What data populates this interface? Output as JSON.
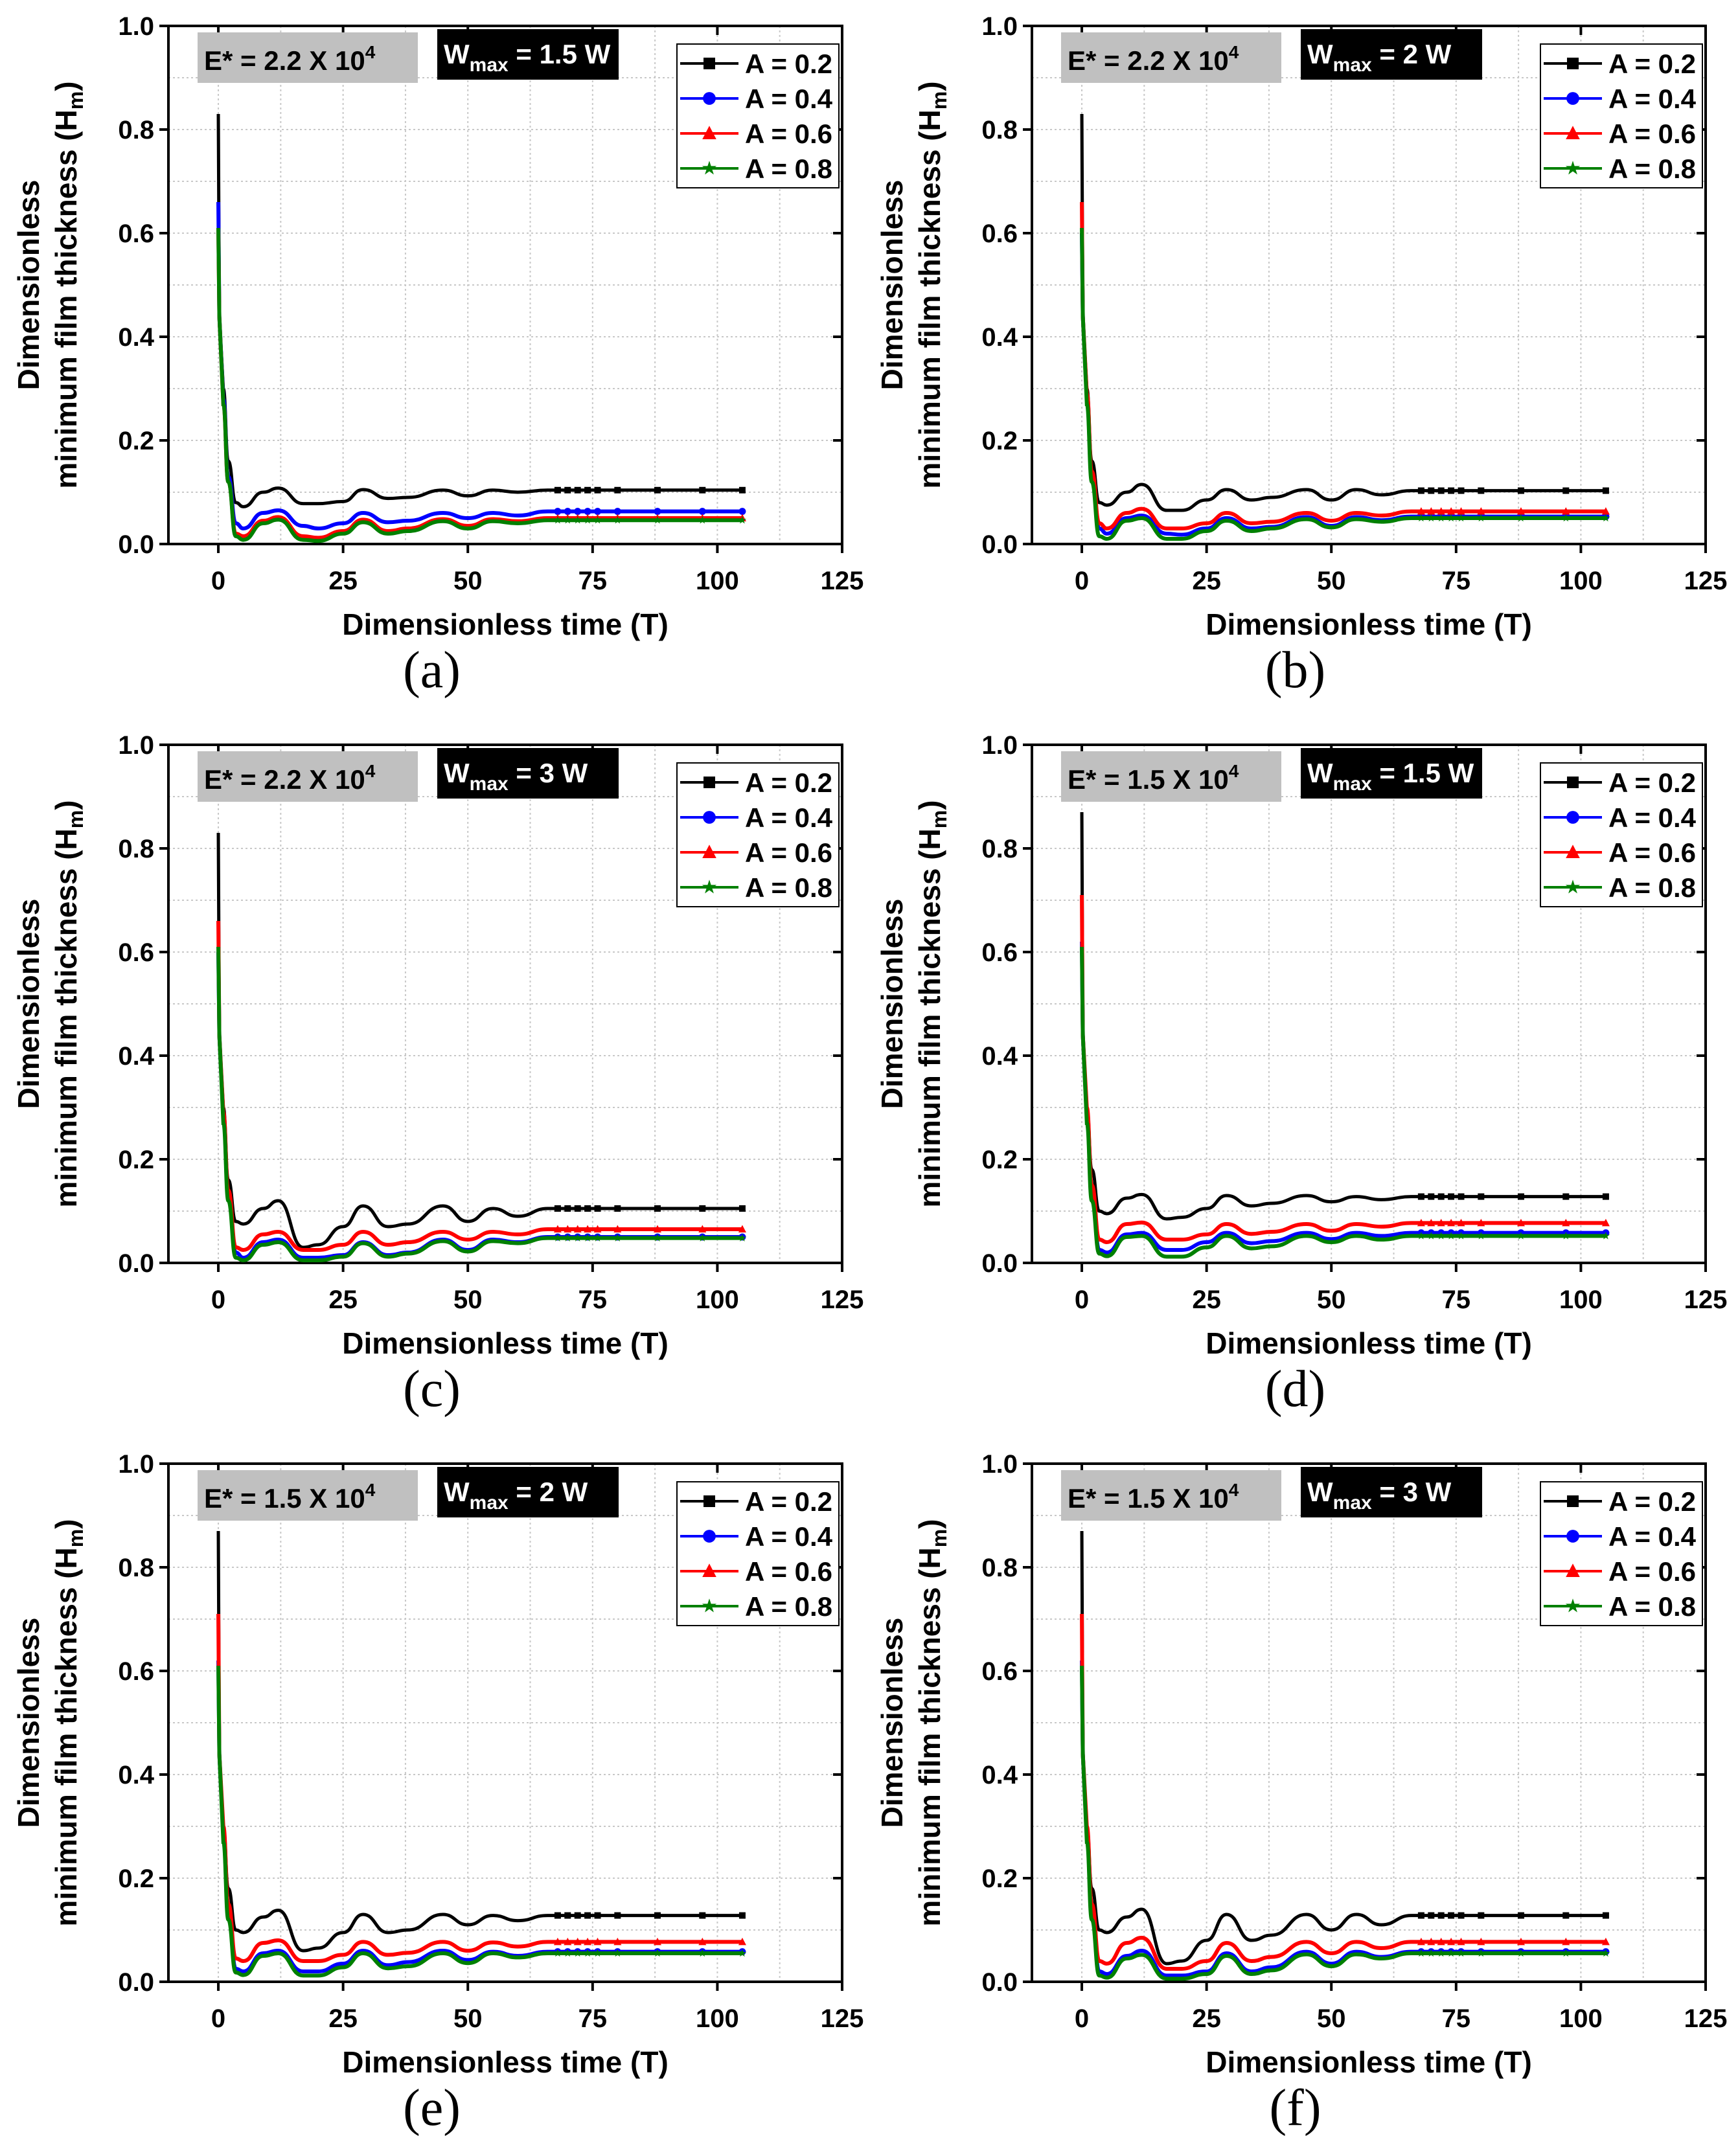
{
  "chart_data": [
    {
      "id": "a",
      "panel_label": "(a)",
      "type": "line",
      "e_label": "E* = 2.2 X 10",
      "e_exp": "4",
      "w_main": "W",
      "w_sub": "max",
      "w_rest": " = 1.5 W",
      "xlabel": "Dimensionless time (T)",
      "ylabel_line1": "Dimensionless",
      "ylabel_line2": "minimum film thickness (H",
      "ylabel_sub": "m",
      "ylabel_end": ")",
      "xlim": [
        -10,
        125
      ],
      "ylim": [
        0,
        1
      ],
      "xticks": [
        "0",
        "25",
        "50",
        "75",
        "100",
        "125"
      ],
      "yticks": [
        "0.0",
        "0.2",
        "0.4",
        "0.6",
        "0.8",
        "1.0"
      ],
      "grid": true,
      "legend": "top-right",
      "x": [
        0,
        0.2,
        1,
        2,
        3.5,
        5,
        9,
        12,
        17,
        20,
        25,
        29,
        34,
        38,
        45,
        50,
        55,
        60,
        66,
        105
      ],
      "series": [
        {
          "name": "A = 0.2",
          "color": "#000000",
          "marker": "square",
          "values": [
            0.83,
            0.44,
            0.3,
            0.16,
            0.08,
            0.072,
            0.1,
            0.108,
            0.078,
            0.078,
            0.082,
            0.105,
            0.088,
            0.09,
            0.104,
            0.093,
            0.104,
            0.1,
            0.104,
            0.104
          ]
        },
        {
          "name": "A = 0.4",
          "color": "#0000ff",
          "marker": "circle",
          "values": [
            0.66,
            0.44,
            0.28,
            0.13,
            0.04,
            0.03,
            0.06,
            0.065,
            0.035,
            0.03,
            0.04,
            0.06,
            0.042,
            0.045,
            0.06,
            0.05,
            0.06,
            0.055,
            0.063,
            0.063
          ]
        },
        {
          "name": "A = 0.6",
          "color": "#ff0000",
          "marker": "triangle",
          "values": [
            0.61,
            0.44,
            0.27,
            0.12,
            0.02,
            0.015,
            0.045,
            0.052,
            0.015,
            0.012,
            0.025,
            0.047,
            0.025,
            0.03,
            0.048,
            0.035,
            0.048,
            0.044,
            0.05,
            0.05
          ]
        },
        {
          "name": "A = 0.8",
          "color": "#008000",
          "marker": "star",
          "values": [
            0.61,
            0.44,
            0.27,
            0.12,
            0.015,
            0.008,
            0.04,
            0.047,
            0.008,
            0.006,
            0.02,
            0.042,
            0.02,
            0.025,
            0.044,
            0.03,
            0.044,
            0.04,
            0.046,
            0.046
          ]
        }
      ]
    },
    {
      "id": "b",
      "panel_label": "(b)",
      "type": "line",
      "e_label": "E* = 2.2 X 10",
      "e_exp": "4",
      "w_main": "W",
      "w_sub": "max",
      "w_rest": " = 2 W",
      "xlabel": "Dimensionless time (T)",
      "ylabel_line1": "Dimensionless",
      "ylabel_line2": "minimum film thickness (H",
      "ylabel_sub": "m",
      "ylabel_end": ")",
      "xlim": [
        -10,
        125
      ],
      "ylim": [
        0,
        1
      ],
      "xticks": [
        "0",
        "25",
        "50",
        "75",
        "100",
        "125"
      ],
      "yticks": [
        "0.0",
        "0.2",
        "0.4",
        "0.6",
        "0.8",
        "1.0"
      ],
      "grid": true,
      "legend": "top-right",
      "x": [
        0,
        0.2,
        1,
        2,
        3.5,
        5,
        9,
        12,
        17,
        20,
        25,
        29,
        34,
        38,
        45,
        50,
        55,
        60,
        66,
        105
      ],
      "series": [
        {
          "name": "A = 0.2",
          "color": "#000000",
          "marker": "square",
          "values": [
            0.83,
            0.44,
            0.3,
            0.16,
            0.08,
            0.075,
            0.1,
            0.115,
            0.065,
            0.065,
            0.085,
            0.105,
            0.085,
            0.09,
            0.105,
            0.085,
            0.105,
            0.095,
            0.103,
            0.103
          ]
        },
        {
          "name": "A = 0.4",
          "color": "#0000ff",
          "marker": "circle",
          "values": [
            0.6,
            0.44,
            0.28,
            0.13,
            0.03,
            0.02,
            0.05,
            0.055,
            0.02,
            0.018,
            0.03,
            0.05,
            0.03,
            0.033,
            0.052,
            0.035,
            0.052,
            0.046,
            0.053,
            0.053
          ]
        },
        {
          "name": "A = 0.6",
          "color": "#ff0000",
          "marker": "triangle",
          "values": [
            0.66,
            0.44,
            0.29,
            0.14,
            0.04,
            0.03,
            0.06,
            0.068,
            0.03,
            0.03,
            0.04,
            0.06,
            0.04,
            0.043,
            0.06,
            0.045,
            0.06,
            0.055,
            0.063,
            0.063
          ]
        },
        {
          "name": "A = 0.8",
          "color": "#008000",
          "marker": "star",
          "values": [
            0.61,
            0.44,
            0.27,
            0.12,
            0.015,
            0.01,
            0.045,
            0.05,
            0.01,
            0.01,
            0.025,
            0.045,
            0.025,
            0.03,
            0.048,
            0.032,
            0.048,
            0.043,
            0.05,
            0.05
          ]
        }
      ]
    },
    {
      "id": "c",
      "panel_label": "(c)",
      "type": "line",
      "e_label": "E* = 2.2 X 10",
      "e_exp": "4",
      "w_main": "W",
      "w_sub": "max",
      "w_rest": " = 3 W",
      "xlabel": "Dimensionless time (T)",
      "ylabel_line1": "Dimensionless",
      "ylabel_line2": "minimum film thickness (H",
      "ylabel_sub": "m",
      "ylabel_end": ")",
      "xlim": [
        -10,
        125
      ],
      "ylim": [
        0,
        1
      ],
      "xticks": [
        "0",
        "25",
        "50",
        "75",
        "100",
        "125"
      ],
      "yticks": [
        "0.0",
        "0.2",
        "0.4",
        "0.6",
        "0.8",
        "1.0"
      ],
      "grid": true,
      "legend": "top-right",
      "x": [
        0,
        0.2,
        1,
        2,
        3.5,
        5,
        9,
        12,
        17,
        20,
        25,
        29,
        34,
        38,
        45,
        50,
        55,
        60,
        66,
        105
      ],
      "series": [
        {
          "name": "A = 0.2",
          "color": "#000000",
          "marker": "square",
          "values": [
            0.83,
            0.44,
            0.3,
            0.16,
            0.08,
            0.075,
            0.105,
            0.12,
            0.03,
            0.035,
            0.07,
            0.11,
            0.07,
            0.075,
            0.11,
            0.08,
            0.105,
            0.09,
            0.105,
            0.105
          ]
        },
        {
          "name": "A = 0.4",
          "color": "#0000ff",
          "marker": "circle",
          "values": [
            0.6,
            0.44,
            0.28,
            0.13,
            0.02,
            0.01,
            0.04,
            0.045,
            0.01,
            0.01,
            0.015,
            0.04,
            0.015,
            0.02,
            0.045,
            0.025,
            0.045,
            0.04,
            0.05,
            0.05
          ]
        },
        {
          "name": "A = 0.6",
          "color": "#ff0000",
          "marker": "triangle",
          "values": [
            0.66,
            0.44,
            0.29,
            0.14,
            0.03,
            0.025,
            0.055,
            0.06,
            0.025,
            0.025,
            0.035,
            0.06,
            0.035,
            0.04,
            0.06,
            0.045,
            0.06,
            0.055,
            0.065,
            0.065
          ]
        },
        {
          "name": "A = 0.8",
          "color": "#008000",
          "marker": "star",
          "values": [
            0.61,
            0.44,
            0.27,
            0.12,
            0.01,
            0.005,
            0.035,
            0.04,
            0.005,
            0.005,
            0.012,
            0.038,
            0.012,
            0.018,
            0.042,
            0.022,
            0.042,
            0.038,
            0.048,
            0.048
          ]
        }
      ]
    },
    {
      "id": "d",
      "panel_label": "(d)",
      "type": "line",
      "e_label": "E* = 1.5 X 10",
      "e_exp": "4",
      "w_main": "W",
      "w_sub": "max",
      "w_rest": " = 1.5 W",
      "xlabel": "Dimensionless time (T)",
      "ylabel_line1": "Dimensionless",
      "ylabel_line2": "minimum film thickness (H",
      "ylabel_sub": "m",
      "ylabel_end": ")",
      "xlim": [
        -10,
        125
      ],
      "ylim": [
        0,
        1
      ],
      "xticks": [
        "0",
        "25",
        "50",
        "75",
        "100",
        "125"
      ],
      "yticks": [
        "0.0",
        "0.2",
        "0.4",
        "0.6",
        "0.8",
        "1.0"
      ],
      "grid": true,
      "legend": "top-right",
      "x": [
        0,
        0.2,
        1,
        2,
        3.5,
        5,
        9,
        12,
        17,
        20,
        25,
        29,
        34,
        38,
        45,
        50,
        55,
        60,
        66,
        105
      ],
      "series": [
        {
          "name": "A = 0.2",
          "color": "#000000",
          "marker": "square",
          "values": [
            0.87,
            0.44,
            0.3,
            0.18,
            0.1,
            0.095,
            0.125,
            0.132,
            0.085,
            0.088,
            0.105,
            0.13,
            0.11,
            0.115,
            0.13,
            0.118,
            0.128,
            0.122,
            0.128,
            0.128
          ]
        },
        {
          "name": "A = 0.4",
          "color": "#0000ff",
          "marker": "circle",
          "values": [
            0.62,
            0.44,
            0.28,
            0.13,
            0.025,
            0.02,
            0.055,
            0.058,
            0.025,
            0.025,
            0.04,
            0.058,
            0.038,
            0.042,
            0.058,
            0.046,
            0.058,
            0.052,
            0.058,
            0.058
          ]
        },
        {
          "name": "A = 0.6",
          "color": "#ff0000",
          "marker": "triangle",
          "values": [
            0.71,
            0.44,
            0.3,
            0.15,
            0.045,
            0.04,
            0.075,
            0.078,
            0.045,
            0.045,
            0.055,
            0.075,
            0.056,
            0.06,
            0.075,
            0.062,
            0.075,
            0.07,
            0.077,
            0.077
          ]
        },
        {
          "name": "A = 0.8",
          "color": "#008000",
          "marker": "star",
          "values": [
            0.61,
            0.44,
            0.27,
            0.12,
            0.018,
            0.013,
            0.05,
            0.052,
            0.012,
            0.012,
            0.03,
            0.052,
            0.028,
            0.032,
            0.052,
            0.04,
            0.052,
            0.045,
            0.052,
            0.052
          ]
        }
      ]
    },
    {
      "id": "e",
      "panel_label": "(e)",
      "type": "line",
      "e_label": "E* = 1.5 X 10",
      "e_exp": "4",
      "w_main": "W",
      "w_sub": "max",
      "w_rest": " = 2 W",
      "xlabel": "Dimensionless time (T)",
      "ylabel_line1": "Dimensionless",
      "ylabel_line2": "minimum film thickness (H",
      "ylabel_sub": "m",
      "ylabel_end": ")",
      "xlim": [
        -10,
        125
      ],
      "ylim": [
        0,
        1
      ],
      "xticks": [
        "0",
        "25",
        "50",
        "75",
        "100",
        "125"
      ],
      "yticks": [
        "0.0",
        "0.2",
        "0.4",
        "0.6",
        "0.8",
        "1.0"
      ],
      "grid": true,
      "legend": "top-right",
      "x": [
        0,
        0.2,
        1,
        2,
        3.5,
        5,
        9,
        12,
        17,
        20,
        25,
        29,
        34,
        38,
        45,
        50,
        55,
        60,
        66,
        105
      ],
      "series": [
        {
          "name": "A = 0.2",
          "color": "#000000",
          "marker": "square",
          "values": [
            0.87,
            0.44,
            0.3,
            0.18,
            0.1,
            0.095,
            0.125,
            0.138,
            0.06,
            0.065,
            0.095,
            0.13,
            0.095,
            0.1,
            0.13,
            0.11,
            0.128,
            0.118,
            0.128,
            0.128
          ]
        },
        {
          "name": "A = 0.4",
          "color": "#0000ff",
          "marker": "circle",
          "values": [
            0.62,
            0.44,
            0.28,
            0.13,
            0.025,
            0.02,
            0.055,
            0.06,
            0.02,
            0.02,
            0.035,
            0.06,
            0.032,
            0.038,
            0.06,
            0.042,
            0.058,
            0.05,
            0.058,
            0.058
          ]
        },
        {
          "name": "A = 0.6",
          "color": "#ff0000",
          "marker": "triangle",
          "values": [
            0.71,
            0.44,
            0.3,
            0.15,
            0.045,
            0.04,
            0.075,
            0.08,
            0.04,
            0.04,
            0.052,
            0.077,
            0.052,
            0.056,
            0.077,
            0.06,
            0.076,
            0.068,
            0.077,
            0.077
          ]
        },
        {
          "name": "A = 0.8",
          "color": "#008000",
          "marker": "star",
          "values": [
            0.61,
            0.44,
            0.27,
            0.12,
            0.018,
            0.013,
            0.05,
            0.055,
            0.012,
            0.012,
            0.028,
            0.055,
            0.026,
            0.03,
            0.055,
            0.036,
            0.055,
            0.047,
            0.055,
            0.055
          ]
        }
      ]
    },
    {
      "id": "f",
      "panel_label": "(f)",
      "type": "line",
      "e_label": "E* = 1.5 X 10",
      "e_exp": "4",
      "w_main": "W",
      "w_sub": "max",
      "w_rest": " = 3 W",
      "xlabel": "Dimensionless time (T)",
      "ylabel_line1": "Dimensionless",
      "ylabel_line2": "minimum film thickness (H",
      "ylabel_sub": "m",
      "ylabel_end": ")",
      "xlim": [
        -10,
        125
      ],
      "ylim": [
        0,
        1
      ],
      "xticks": [
        "0",
        "25",
        "50",
        "75",
        "100",
        "125"
      ],
      "yticks": [
        "0.0",
        "0.2",
        "0.4",
        "0.6",
        "0.8",
        "1.0"
      ],
      "grid": true,
      "legend": "top-right",
      "x": [
        0,
        0.2,
        1,
        2,
        3.5,
        5,
        9,
        12,
        17,
        20,
        25,
        29,
        34,
        38,
        45,
        50,
        55,
        60,
        66,
        105
      ],
      "series": [
        {
          "name": "A = 0.2",
          "color": "#000000",
          "marker": "square",
          "values": [
            0.87,
            0.44,
            0.3,
            0.18,
            0.1,
            0.095,
            0.125,
            0.14,
            0.035,
            0.04,
            0.08,
            0.13,
            0.08,
            0.09,
            0.13,
            0.1,
            0.13,
            0.11,
            0.128,
            0.128
          ]
        },
        {
          "name": "A = 0.4",
          "color": "#0000ff",
          "marker": "circle",
          "values": [
            0.62,
            0.44,
            0.28,
            0.13,
            0.02,
            0.015,
            0.05,
            0.06,
            0.012,
            0.012,
            0.02,
            0.055,
            0.02,
            0.028,
            0.058,
            0.035,
            0.058,
            0.048,
            0.058,
            0.058
          ]
        },
        {
          "name": "A = 0.6",
          "color": "#ff0000",
          "marker": "triangle",
          "values": [
            0.71,
            0.44,
            0.3,
            0.15,
            0.04,
            0.035,
            0.075,
            0.085,
            0.025,
            0.025,
            0.04,
            0.075,
            0.04,
            0.048,
            0.077,
            0.055,
            0.077,
            0.065,
            0.077,
            0.077
          ]
        },
        {
          "name": "A = 0.8",
          "color": "#008000",
          "marker": "star",
          "values": [
            0.61,
            0.44,
            0.27,
            0.12,
            0.012,
            0.008,
            0.045,
            0.052,
            0.006,
            0.006,
            0.015,
            0.05,
            0.015,
            0.022,
            0.053,
            0.03,
            0.053,
            0.045,
            0.055,
            0.055
          ]
        }
      ]
    }
  ]
}
